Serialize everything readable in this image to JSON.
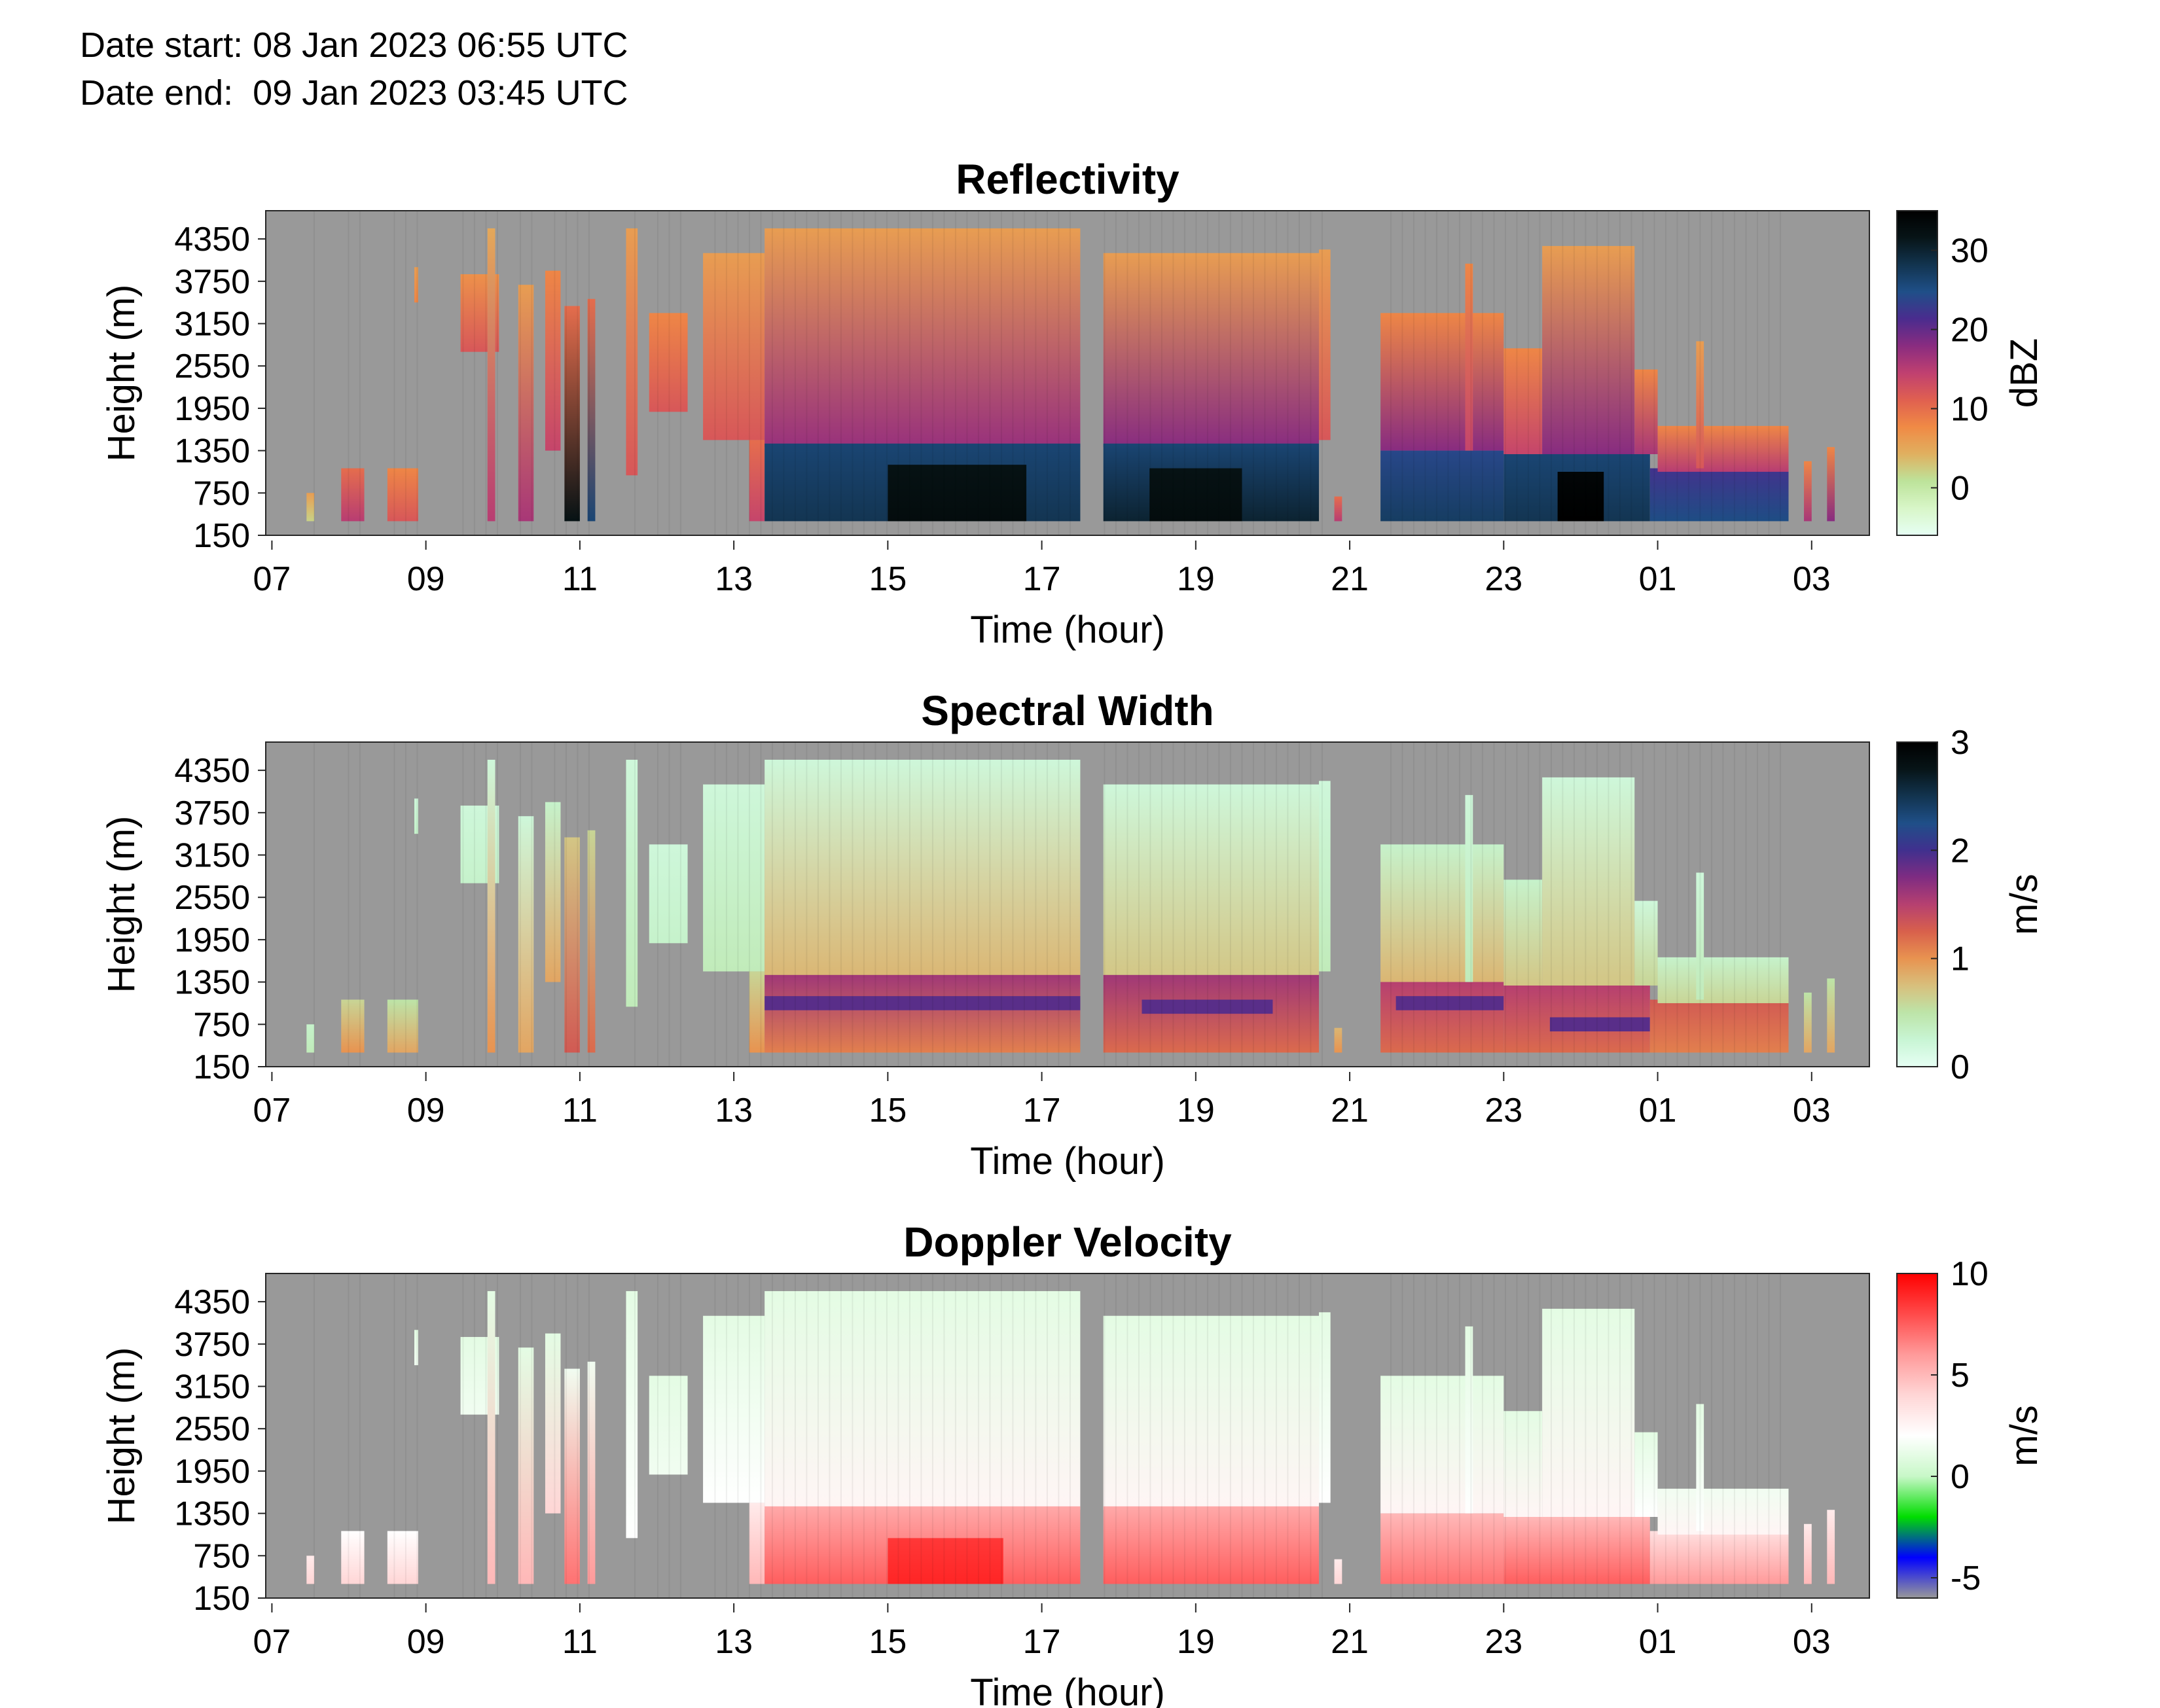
{
  "header": {
    "date_start": "Date start: 08 Jan 2023 06:55 UTC",
    "date_end": "Date end:  09 Jan 2023 03:45 UTC"
  },
  "background_color": "#999999",
  "chart_data": [
    {
      "type": "heatmap",
      "title": "Reflectivity",
      "xlabel": "Time (hour)",
      "ylabel": "Height (m)",
      "x_ticks": [
        "07",
        "09",
        "11",
        "13",
        "15",
        "17",
        "19",
        "21",
        "23",
        "01",
        "03"
      ],
      "y_ticks": [
        "150",
        "750",
        "1350",
        "1950",
        "2550",
        "3150",
        "3750",
        "4350"
      ],
      "xlim": [
        6.92,
        27.75
      ],
      "ylim": [
        150,
        4750
      ],
      "colorbar": {
        "label": "dBZ",
        "ticks": [
          "0",
          "10",
          "20",
          "30"
        ],
        "range": [
          -6,
          35
        ],
        "colors": [
          "#e6fff4",
          "#d8f6c8",
          "#bde39a",
          "#e0b060",
          "#f08a45",
          "#e06050",
          "#c04070",
          "#8a2c80",
          "#4a2c8e",
          "#1f4f88",
          "#12344f",
          "#071417",
          "#000000"
        ]
      },
      "cloud_regions": [
        {
          "x0": 7.45,
          "x1": 7.55,
          "y0": 350,
          "y1": 750,
          "v0": 2,
          "v1": 6
        },
        {
          "x0": 7.9,
          "x1": 8.2,
          "y0": 350,
          "y1": 1100,
          "v0": 15,
          "v1": 10
        },
        {
          "x0": 8.5,
          "x1": 8.9,
          "y0": 350,
          "y1": 1100,
          "v0": 12,
          "v1": 8
        },
        {
          "x0": 8.85,
          "x1": 8.9,
          "y0": 3450,
          "y1": 3950,
          "v0": 8,
          "v1": 6
        },
        {
          "x0": 9.45,
          "x1": 9.95,
          "y0": 2750,
          "y1": 3850,
          "v0": 12,
          "v1": 7
        },
        {
          "x0": 9.8,
          "x1": 9.9,
          "y0": 350,
          "y1": 4500,
          "v0": 15,
          "v1": 5
        },
        {
          "x0": 10.2,
          "x1": 10.4,
          "y0": 350,
          "y1": 3700,
          "v0": 16,
          "v1": 6
        },
        {
          "x0": 10.55,
          "x1": 10.75,
          "y0": 1350,
          "y1": 3900,
          "v0": 14,
          "v1": 8
        },
        {
          "x0": 10.8,
          "x1": 11.0,
          "y0": 350,
          "y1": 3400,
          "v0": 32,
          "v1": 10
        },
        {
          "x0": 11.1,
          "x1": 11.2,
          "y0": 350,
          "y1": 3500,
          "v0": 26,
          "v1": 10
        },
        {
          "x0": 11.6,
          "x1": 11.75,
          "y0": 1000,
          "y1": 4500,
          "v0": 12,
          "v1": 6
        },
        {
          "x0": 11.9,
          "x1": 12.4,
          "y0": 1900,
          "y1": 3300,
          "v0": 12,
          "v1": 8
        },
        {
          "x0": 12.6,
          "x1": 13.4,
          "y0": 1500,
          "y1": 4150,
          "v0": 12,
          "v1": 6
        },
        {
          "x0": 13.2,
          "x1": 13.4,
          "y0": 350,
          "y1": 1500,
          "v0": 14,
          "v1": 10
        },
        {
          "x0": 13.4,
          "x1": 17.5,
          "y0": 1400,
          "y1": 4500,
          "v0": 17,
          "v1": 6
        },
        {
          "x0": 13.4,
          "x1": 17.5,
          "y0": 350,
          "y1": 1450,
          "v0": 28,
          "v1": 26
        },
        {
          "x0": 15.0,
          "x1": 16.8,
          "y0": 350,
          "y1": 1150,
          "v0": 33,
          "v1": 32
        },
        {
          "x0": 17.8,
          "x1": 20.6,
          "y0": 1400,
          "y1": 4150,
          "v0": 18,
          "v1": 6
        },
        {
          "x0": 17.8,
          "x1": 20.6,
          "y0": 350,
          "y1": 1450,
          "v0": 30,
          "v1": 26
        },
        {
          "x0": 18.4,
          "x1": 19.6,
          "y0": 350,
          "y1": 1100,
          "v0": 33,
          "v1": 32
        },
        {
          "x0": 20.6,
          "x1": 20.75,
          "y0": 1500,
          "y1": 4200,
          "v0": 12,
          "v1": 6
        },
        {
          "x0": 20.8,
          "x1": 20.9,
          "y0": 350,
          "y1": 700,
          "v0": 15,
          "v1": 10
        },
        {
          "x0": 21.4,
          "x1": 23.0,
          "y0": 1350,
          "y1": 3300,
          "v0": 18,
          "v1": 8
        },
        {
          "x0": 21.4,
          "x1": 23.0,
          "y0": 350,
          "y1": 1350,
          "v0": 27,
          "v1": 24
        },
        {
          "x0": 22.5,
          "x1": 22.6,
          "y0": 1350,
          "y1": 4000,
          "v0": 14,
          "v1": 8
        },
        {
          "x0": 23.0,
          "x1": 23.5,
          "y0": 1300,
          "y1": 2800,
          "v0": 14,
          "v1": 8
        },
        {
          "x0": 23.0,
          "x1": 24.9,
          "y0": 350,
          "y1": 1300,
          "v0": 28,
          "v1": 26
        },
        {
          "x0": 23.5,
          "x1": 24.7,
          "y0": 1300,
          "y1": 4250,
          "v0": 18,
          "v1": 6
        },
        {
          "x0": 23.7,
          "x1": 24.3,
          "y0": 350,
          "y1": 1050,
          "v0": 35,
          "v1": 34
        },
        {
          "x0": 24.7,
          "x1": 25.0,
          "y0": 1300,
          "y1": 2500,
          "v0": 16,
          "v1": 8
        },
        {
          "x0": 24.9,
          "x1": 26.7,
          "y0": 350,
          "y1": 1100,
          "v0": 25,
          "v1": 22
        },
        {
          "x0": 25.0,
          "x1": 26.7,
          "y0": 1050,
          "y1": 1700,
          "v0": 15,
          "v1": 8
        },
        {
          "x0": 25.5,
          "x1": 25.6,
          "y0": 1100,
          "y1": 2900,
          "v0": 12,
          "v1": 6
        },
        {
          "x0": 26.9,
          "x1": 27.0,
          "y0": 350,
          "y1": 1200,
          "v0": 16,
          "v1": 8
        },
        {
          "x0": 27.2,
          "x1": 27.3,
          "y0": 350,
          "y1": 1400,
          "v0": 18,
          "v1": 8
        }
      ]
    },
    {
      "type": "heatmap",
      "title": "Spectral Width",
      "xlabel": "Time (hour)",
      "ylabel": "Height (m)",
      "x_ticks": [
        "07",
        "09",
        "11",
        "13",
        "15",
        "17",
        "19",
        "21",
        "23",
        "01",
        "03"
      ],
      "y_ticks": [
        "150",
        "750",
        "1350",
        "1950",
        "2550",
        "3150",
        "3750",
        "4350"
      ],
      "xlim": [
        6.92,
        27.75
      ],
      "ylim": [
        150,
        4750
      ],
      "colorbar": {
        "label": "m/s",
        "ticks": [
          "0",
          "1",
          "2",
          "3"
        ],
        "range": [
          0,
          3
        ],
        "colors": [
          "#e6fff4",
          "#c8f5d4",
          "#bde4a8",
          "#d8bf7c",
          "#e89350",
          "#d8604c",
          "#b64070",
          "#7f2c82",
          "#40308e",
          "#1f4f88",
          "#12344f",
          "#071417",
          "#000000"
        ]
      },
      "cloud_regions": [
        {
          "x0": 7.45,
          "x1": 7.55,
          "y0": 350,
          "y1": 750,
          "v0": 0.4,
          "v1": 0.3
        },
        {
          "x0": 7.9,
          "x1": 8.2,
          "y0": 350,
          "y1": 1100,
          "v0": 1.0,
          "v1": 0.6
        },
        {
          "x0": 8.5,
          "x1": 8.9,
          "y0": 350,
          "y1": 1100,
          "v0": 0.9,
          "v1": 0.5
        },
        {
          "x0": 8.85,
          "x1": 8.9,
          "y0": 3450,
          "y1": 3950,
          "v0": 0.3,
          "v1": 0.2
        },
        {
          "x0": 9.45,
          "x1": 9.95,
          "y0": 2750,
          "y1": 3850,
          "v0": 0.3,
          "v1": 0.2
        },
        {
          "x0": 9.8,
          "x1": 9.9,
          "y0": 350,
          "y1": 4500,
          "v0": 1.0,
          "v1": 0.2
        },
        {
          "x0": 10.2,
          "x1": 10.4,
          "y0": 350,
          "y1": 3700,
          "v0": 0.9,
          "v1": 0.2
        },
        {
          "x0": 10.55,
          "x1": 10.75,
          "y0": 1350,
          "y1": 3900,
          "v0": 0.9,
          "v1": 0.3
        },
        {
          "x0": 10.8,
          "x1": 11.0,
          "y0": 350,
          "y1": 3400,
          "v0": 1.3,
          "v1": 0.7
        },
        {
          "x0": 11.1,
          "x1": 11.2,
          "y0": 350,
          "y1": 3500,
          "v0": 1.2,
          "v1": 0.6
        },
        {
          "x0": 11.6,
          "x1": 11.75,
          "y0": 1000,
          "y1": 4500,
          "v0": 0.4,
          "v1": 0.2
        },
        {
          "x0": 11.9,
          "x1": 12.4,
          "y0": 1900,
          "y1": 3300,
          "v0": 0.3,
          "v1": 0.2
        },
        {
          "x0": 12.6,
          "x1": 13.4,
          "y0": 1500,
          "y1": 4150,
          "v0": 0.4,
          "v1": 0.2
        },
        {
          "x0": 13.2,
          "x1": 13.4,
          "y0": 350,
          "y1": 1500,
          "v0": 1.0,
          "v1": 0.6
        },
        {
          "x0": 13.4,
          "x1": 17.5,
          "y0": 1400,
          "y1": 4500,
          "v0": 0.8,
          "v1": 0.2
        },
        {
          "x0": 13.4,
          "x1": 17.5,
          "y0": 350,
          "y1": 1450,
          "v0": 1.1,
          "v1": 1.6
        },
        {
          "x0": 13.4,
          "x1": 17.5,
          "y0": 950,
          "y1": 1150,
          "v0": 1.9,
          "v1": 1.9
        },
        {
          "x0": 17.8,
          "x1": 20.6,
          "y0": 1400,
          "y1": 4150,
          "v0": 0.7,
          "v1": 0.2
        },
        {
          "x0": 17.8,
          "x1": 20.6,
          "y0": 350,
          "y1": 1450,
          "v0": 1.2,
          "v1": 1.6
        },
        {
          "x0": 18.3,
          "x1": 20.0,
          "y0": 900,
          "y1": 1100,
          "v0": 1.9,
          "v1": 1.9
        },
        {
          "x0": 20.6,
          "x1": 20.75,
          "y0": 1500,
          "y1": 4200,
          "v0": 0.4,
          "v1": 0.2
        },
        {
          "x0": 20.8,
          "x1": 20.9,
          "y0": 350,
          "y1": 700,
          "v0": 1.0,
          "v1": 0.8
        },
        {
          "x0": 21.4,
          "x1": 23.0,
          "y0": 1350,
          "y1": 3300,
          "v0": 0.8,
          "v1": 0.3
        },
        {
          "x0": 21.4,
          "x1": 23.0,
          "y0": 350,
          "y1": 1350,
          "v0": 1.2,
          "v1": 1.5
        },
        {
          "x0": 21.6,
          "x1": 23.0,
          "y0": 950,
          "y1": 1150,
          "v0": 1.9,
          "v1": 1.9
        },
        {
          "x0": 22.5,
          "x1": 22.6,
          "y0": 1350,
          "y1": 4000,
          "v0": 0.4,
          "v1": 0.2
        },
        {
          "x0": 23.0,
          "x1": 23.5,
          "y0": 1300,
          "y1": 2800,
          "v0": 0.7,
          "v1": 0.3
        },
        {
          "x0": 23.0,
          "x1": 24.9,
          "y0": 350,
          "y1": 1300,
          "v0": 1.2,
          "v1": 1.5
        },
        {
          "x0": 23.6,
          "x1": 24.9,
          "y0": 650,
          "y1": 850,
          "v0": 1.9,
          "v1": 1.9
        },
        {
          "x0": 23.5,
          "x1": 24.7,
          "y0": 1300,
          "y1": 4250,
          "v0": 0.7,
          "v1": 0.2
        },
        {
          "x0": 24.7,
          "x1": 25.0,
          "y0": 1300,
          "y1": 2500,
          "v0": 0.6,
          "v1": 0.2
        },
        {
          "x0": 24.9,
          "x1": 26.7,
          "y0": 350,
          "y1": 1100,
          "v0": 1.1,
          "v1": 1.3
        },
        {
          "x0": 25.0,
          "x1": 26.7,
          "y0": 1050,
          "y1": 1700,
          "v0": 0.6,
          "v1": 0.3
        },
        {
          "x0": 25.5,
          "x1": 25.6,
          "y0": 1100,
          "y1": 2900,
          "v0": 0.4,
          "v1": 0.2
        },
        {
          "x0": 26.9,
          "x1": 27.0,
          "y0": 350,
          "y1": 1200,
          "v0": 0.9,
          "v1": 0.5
        },
        {
          "x0": 27.2,
          "x1": 27.3,
          "y0": 350,
          "y1": 1400,
          "v0": 0.9,
          "v1": 0.5
        }
      ]
    },
    {
      "type": "heatmap",
      "title": "Doppler Velocity",
      "xlabel": "Time (hour)",
      "ylabel": "Height (m)",
      "x_ticks": [
        "07",
        "09",
        "11",
        "13",
        "15",
        "17",
        "19",
        "21",
        "23",
        "01",
        "03"
      ],
      "y_ticks": [
        "150",
        "750",
        "1350",
        "1950",
        "2550",
        "3150",
        "3750",
        "4350"
      ],
      "xlim": [
        6.92,
        27.75
      ],
      "ylim": [
        150,
        4750
      ],
      "colorbar": {
        "label": "m/s",
        "ticks": [
          "-5",
          "0",
          "5",
          "10"
        ],
        "range": [
          -6,
          10
        ],
        "colors": [
          "#999999",
          "#0000ff",
          "#00dd00",
          "#c8f8c8",
          "#ffffff",
          "#ffd6d6",
          "#ff9a9a",
          "#ff4a4a",
          "#ff0000"
        ]
      },
      "cloud_regions": [
        {
          "x0": 7.45,
          "x1": 7.55,
          "y0": 350,
          "y1": 750,
          "v0": 4,
          "v1": 3
        },
        {
          "x0": 7.9,
          "x1": 8.2,
          "y0": 350,
          "y1": 1100,
          "v0": 4,
          "v1": 2
        },
        {
          "x0": 8.5,
          "x1": 8.9,
          "y0": 350,
          "y1": 1100,
          "v0": 4,
          "v1": 2
        },
        {
          "x0": 8.85,
          "x1": 8.9,
          "y0": 3450,
          "y1": 3950,
          "v0": 1.5,
          "v1": 1
        },
        {
          "x0": 9.45,
          "x1": 9.95,
          "y0": 2750,
          "y1": 3850,
          "v0": 1.5,
          "v1": 1
        },
        {
          "x0": 9.8,
          "x1": 9.9,
          "y0": 350,
          "y1": 4500,
          "v0": 5,
          "v1": 1
        },
        {
          "x0": 10.2,
          "x1": 10.4,
          "y0": 350,
          "y1": 3700,
          "v0": 5,
          "v1": 1
        },
        {
          "x0": 10.55,
          "x1": 10.75,
          "y0": 1350,
          "y1": 3900,
          "v0": 4,
          "v1": 1
        },
        {
          "x0": 10.8,
          "x1": 11.0,
          "y0": 350,
          "y1": 3400,
          "v0": 7,
          "v1": 1.5
        },
        {
          "x0": 11.1,
          "x1": 11.2,
          "y0": 350,
          "y1": 3500,
          "v0": 6,
          "v1": 1.5
        },
        {
          "x0": 11.6,
          "x1": 11.75,
          "y0": 1000,
          "y1": 4500,
          "v0": 2,
          "v1": 1
        },
        {
          "x0": 11.9,
          "x1": 12.4,
          "y0": 1900,
          "y1": 3300,
          "v0": 1.5,
          "v1": 1
        },
        {
          "x0": 12.6,
          "x1": 13.4,
          "y0": 1500,
          "y1": 4150,
          "v0": 2,
          "v1": 1
        },
        {
          "x0": 13.2,
          "x1": 13.4,
          "y0": 350,
          "y1": 1500,
          "v0": 5,
          "v1": 3
        },
        {
          "x0": 13.4,
          "x1": 17.5,
          "y0": 1400,
          "y1": 4500,
          "v0": 2.5,
          "v1": 1
        },
        {
          "x0": 13.4,
          "x1": 17.5,
          "y0": 350,
          "y1": 1450,
          "v0": 7.5,
          "v1": 5.5
        },
        {
          "x0": 15.0,
          "x1": 16.5,
          "y0": 350,
          "y1": 1000,
          "v0": 9,
          "v1": 8.5
        },
        {
          "x0": 17.8,
          "x1": 20.6,
          "y0": 1400,
          "y1": 4150,
          "v0": 2.5,
          "v1": 1
        },
        {
          "x0": 17.8,
          "x1": 20.6,
          "y0": 350,
          "y1": 1450,
          "v0": 7.5,
          "v1": 5.5
        },
        {
          "x0": 20.6,
          "x1": 20.75,
          "y0": 1500,
          "y1": 4200,
          "v0": 2,
          "v1": 1
        },
        {
          "x0": 20.8,
          "x1": 20.9,
          "y0": 350,
          "y1": 700,
          "v0": 4,
          "v1": 3
        },
        {
          "x0": 21.4,
          "x1": 23.0,
          "y0": 1350,
          "y1": 3300,
          "v0": 2.5,
          "v1": 1
        },
        {
          "x0": 21.4,
          "x1": 23.0,
          "y0": 350,
          "y1": 1350,
          "v0": 7,
          "v1": 5
        },
        {
          "x0": 22.5,
          "x1": 22.6,
          "y0": 1350,
          "y1": 4000,
          "v0": 2,
          "v1": 1
        },
        {
          "x0": 23.0,
          "x1": 23.5,
          "y0": 1300,
          "y1": 2800,
          "v0": 2.5,
          "v1": 1
        },
        {
          "x0": 23.0,
          "x1": 24.9,
          "y0": 350,
          "y1": 1300,
          "v0": 7.5,
          "v1": 5
        },
        {
          "x0": 23.5,
          "x1": 24.7,
          "y0": 1300,
          "y1": 4250,
          "v0": 2.5,
          "v1": 1
        },
        {
          "x0": 24.7,
          "x1": 25.0,
          "y0": 1300,
          "y1": 2500,
          "v0": 2,
          "v1": 1
        },
        {
          "x0": 24.9,
          "x1": 26.7,
          "y0": 350,
          "y1": 1100,
          "v0": 6,
          "v1": 3.5
        },
        {
          "x0": 25.0,
          "x1": 26.7,
          "y0": 1050,
          "y1": 1700,
          "v0": 2.5,
          "v1": 1.5
        },
        {
          "x0": 25.5,
          "x1": 25.6,
          "y0": 1100,
          "y1": 2900,
          "v0": 2,
          "v1": 1
        },
        {
          "x0": 26.9,
          "x1": 27.0,
          "y0": 350,
          "y1": 1200,
          "v0": 5,
          "v1": 3
        },
        {
          "x0": 27.2,
          "x1": 27.3,
          "y0": 350,
          "y1": 1400,
          "v0": 5,
          "v1": 3
        }
      ]
    }
  ]
}
